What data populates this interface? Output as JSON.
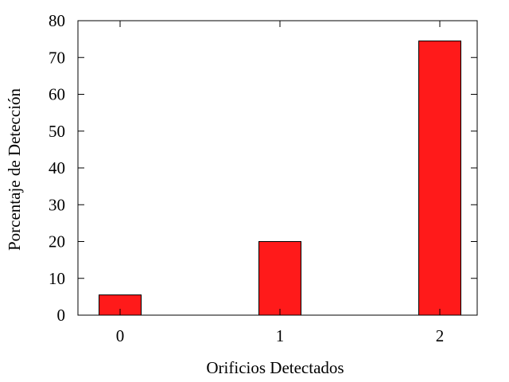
{
  "chart_data": {
    "type": "bar",
    "title": "",
    "xlabel": "Orificios Detectados",
    "ylabel": "Porcentaje de Detección",
    "categories": [
      "0",
      "1",
      "2"
    ],
    "values": [
      5.5,
      20,
      74.5
    ],
    "ylim": [
      0,
      80
    ],
    "yticks": [
      "0",
      "10",
      "20",
      "30",
      "40",
      "50",
      "60",
      "70",
      "80"
    ],
    "grid": false,
    "legend": "none",
    "bar_color": "#ff1a1a",
    "bar_edge_color": "#000000"
  }
}
